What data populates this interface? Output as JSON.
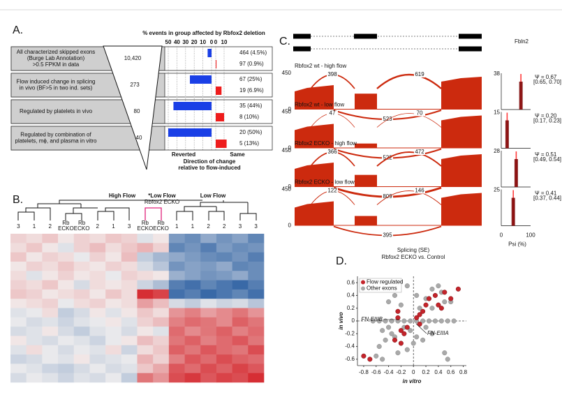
{
  "chart_data": [
    {
      "type": "bar",
      "panel": "A.",
      "title": "% events in group affected by Rbfox2 deletion",
      "categories": [
        [
          "All characterized skipped exons",
          "(Burge Lab Annotation)",
          ">0.5 FPKM in data"
        ],
        [
          "Flow induced change in splicing",
          "in vivo (BF>5 in two ind. sets)"
        ],
        [
          "Regulated by platelets in vivo"
        ],
        [
          "Regulated by combination of",
          "platelets, mϕ, and plasma in vitro"
        ]
      ],
      "event_counts": [
        {
          "value": 10420,
          "label": "10,420"
        },
        273,
        80,
        40
      ],
      "series": [
        {
          "name": "Reverted",
          "color": "#1a3fe6",
          "values": [
            4.5,
            25,
            44,
            50
          ],
          "value_labels": [
            "464 (4.5%)",
            "67 (25%)",
            "35 (44%)",
            "20 (50%)"
          ]
        },
        {
          "name": "Same",
          "color": "#ee1c1c",
          "axis": "x2",
          "values": [
            0.9,
            6.9,
            10,
            13
          ],
          "value_labels": [
            "97 (0.9%)",
            "19 (6.9%)",
            "8 (10%)",
            "5 (13%)"
          ]
        }
      ],
      "xlim": [
        50,
        0
      ],
      "xticks": [
        50,
        40,
        30,
        20,
        10,
        0
      ],
      "x2lim": [
        0,
        10
      ],
      "x2ticks": [
        0,
        10
      ],
      "xlabel": [
        "Direction of change",
        "relative to flow-induced"
      ],
      "grid": true
    },
    {
      "type": "heatmap",
      "panel": "B.",
      "groups": [
        {
          "label": "High Flow",
          "color": "#000000"
        },
        {
          "label": "*Low Flow",
          "sublabel": "Rbfox2 ECKO",
          "color": "#e0207a"
        },
        {
          "label": "Low Flow",
          "color": "#000000"
        }
      ],
      "columns": [
        "3",
        "1",
        "2",
        "Rb ECKO",
        "Rb ECKO",
        "2",
        "1",
        "3",
        "Rb ECKO",
        "Rb ECKO",
        "1",
        "1",
        "2",
        "2",
        "3",
        "3"
      ],
      "highlight": [
        3,
        4,
        8,
        9
      ],
      "highlight_color": "#e0207a",
      "colormap": [
        "#2f62a3",
        "#f3f0f0",
        "#d4242a"
      ],
      "zlim": [
        -2,
        2
      ],
      "values": [
        [
          0.3,
          0.2,
          0.4,
          0.1,
          0.3,
          0.2,
          0.4,
          0.3,
          -0.2,
          0.1,
          -1.2,
          -1.4,
          -1.0,
          -1.3,
          -1.1,
          -1.5
        ],
        [
          0.2,
          0.4,
          0.1,
          -0.2,
          0.3,
          0.5,
          0.2,
          0.4,
          0.6,
          0.3,
          -1.5,
          -1.3,
          -1.6,
          -1.2,
          -1.4,
          -1.3
        ],
        [
          0.4,
          0.1,
          0.3,
          0.2,
          -0.1,
          0.3,
          0.1,
          0.5,
          -0.5,
          -0.8,
          -1.0,
          -1.2,
          -1.4,
          -1.5,
          -1.3,
          -1.6
        ],
        [
          0.1,
          0.3,
          0.2,
          0.4,
          0.2,
          0.1,
          0.3,
          0.2,
          -0.3,
          -0.6,
          -1.3,
          -1.1,
          -1.2,
          -1.0,
          -1.5,
          -1.4
        ],
        [
          0.2,
          -0.2,
          0.1,
          0.3,
          0.1,
          0.2,
          -0.1,
          0.3,
          0.2,
          0.1,
          -0.9,
          -1.1,
          -1.3,
          -1.2,
          -1.0,
          -1.4
        ],
        [
          0.3,
          0.2,
          0.4,
          0.1,
          -0.3,
          0.2,
          0.1,
          0.2,
          -0.4,
          -0.7,
          -1.6,
          -1.8,
          -1.5,
          -1.7,
          -1.9,
          -1.6
        ],
        [
          0.4,
          0.3,
          0.1,
          0.2,
          0.3,
          0.1,
          0.4,
          0.2,
          1.9,
          1.7,
          -1.8,
          -1.6,
          -1.9,
          -1.7,
          -1.5,
          -1.8
        ],
        [
          0.1,
          0.2,
          0.3,
          -0.1,
          0.2,
          0.3,
          0.1,
          0.2,
          0.8,
          0.5,
          -0.3,
          -0.5,
          -0.2,
          -0.4,
          -0.3,
          -0.6
        ],
        [
          -0.2,
          -0.1,
          0.2,
          -0.5,
          -0.3,
          0.1,
          -0.2,
          0.1,
          0.4,
          0.2,
          0.9,
          1.1,
          0.8,
          1.0,
          1.2,
          0.9
        ],
        [
          -0.1,
          -0.3,
          -0.2,
          -0.4,
          -0.2,
          -0.1,
          0.1,
          -0.2,
          0.3,
          0.5,
          1.1,
          1.3,
          1.2,
          1.0,
          1.4,
          1.2
        ],
        [
          -0.3,
          -0.2,
          0.1,
          -0.3,
          -0.5,
          -0.2,
          -0.1,
          -0.3,
          0.1,
          -0.2,
          1.3,
          1.0,
          1.2,
          1.4,
          1.1,
          1.3
        ],
        [
          0.1,
          -0.2,
          -0.3,
          -0.1,
          -0.2,
          -0.4,
          -0.1,
          0.1,
          0.5,
          0.3,
          1.2,
          1.4,
          1.1,
          1.3,
          1.5,
          1.2
        ],
        [
          -0.2,
          0.2,
          -0.1,
          -0.3,
          -0.1,
          -0.2,
          0.2,
          -0.4,
          0.2,
          0.4,
          1.4,
          1.2,
          1.5,
          1.3,
          1.2,
          1.6
        ],
        [
          -0.4,
          -0.3,
          -0.1,
          -0.2,
          0.1,
          -0.3,
          -0.2,
          -0.1,
          0.6,
          0.3,
          1.1,
          1.5,
          1.3,
          1.6,
          1.4,
          1.3
        ],
        [
          -0.1,
          -0.2,
          -0.4,
          -0.5,
          -0.3,
          -0.1,
          -0.3,
          -0.2,
          0.4,
          0.7,
          1.5,
          1.3,
          1.6,
          1.4,
          1.7,
          1.5
        ],
        [
          -0.3,
          -0.1,
          -0.2,
          -0.4,
          -0.2,
          -0.3,
          -0.1,
          -0.5,
          1.2,
          0.9,
          1.6,
          1.8,
          1.5,
          1.7,
          1.6,
          1.9
        ]
      ]
    },
    {
      "type": "sashimi",
      "panel": "C.",
      "gene": "Fbln2",
      "color": "#cc2a0e",
      "ylim": [
        0,
        450
      ],
      "yticks": [
        0,
        450
      ],
      "hist_xticks": [
        0,
        100
      ],
      "hist_xlabel": "Psi (%)",
      "tracks": [
        {
          "name": "Rbfox2 wt - high flow",
          "junctions": [
            398,
            619,
            523
          ],
          "psi": 0.67,
          "psi_label": "Ψ = 0.67",
          "ci": "[0.65, 0.70]",
          "hist_ymax": 38
        },
        {
          "name": "Rbfox2 wt - low flow",
          "junctions": [
            47,
            70,
            522
          ],
          "psi": 0.2,
          "psi_label": "Ψ = 0.20",
          "ci": "[0.17, 0.23]",
          "hist_ymax": 15
        },
        {
          "name": "Rbfox2 ECKO - high flow",
          "junctions": [
            366,
            472,
            809
          ],
          "psi": 0.51,
          "psi_label": "Ψ = 0.51",
          "ci": "[0.49, 0.54]",
          "hist_ymax": 28
        },
        {
          "name": "Rbfox2 ECKO - low flow",
          "junctions": [
            122,
            146,
            395
          ],
          "psi": 0.41,
          "psi_label": "Ψ = 0.41",
          "ci": "[0.37, 0.44]",
          "hist_ymax": 25
        }
      ]
    },
    {
      "type": "scatter",
      "panel": "D.",
      "title": "Splicing (SE)",
      "subtitle": "Rbfox2 ECKO vs. Control",
      "xlabel": "in vitro",
      "ylabel": "in vivo",
      "legend": "upper left",
      "xlim": [
        -0.9,
        0.85
      ],
      "ylim": [
        -0.7,
        0.7
      ],
      "xticks": [
        -0.8,
        -0.6,
        -0.4,
        -0.2,
        0,
        0.2,
        0.4,
        0.6,
        0.8
      ],
      "yticks": [
        -0.6,
        -0.4,
        -0.2,
        0,
        0.2,
        0.4,
        0.6
      ],
      "annotations": [
        "FN-EIIIB",
        "FN-EIIIA"
      ],
      "series": [
        {
          "name": "Flow regulated",
          "color": "#c4242b",
          "x": [
            -0.8,
            -0.7,
            -0.25,
            -0.2,
            -0.15,
            -0.1,
            -0.3,
            -0.2,
            0.05,
            0.1,
            0.15,
            0.2,
            0.25,
            0.35,
            0.4,
            0.45,
            0.5,
            0.72,
            0.1,
            0.6,
            -0.25
          ],
          "y": [
            -0.55,
            -0.6,
            0.05,
            -0.15,
            -0.2,
            -0.1,
            -0.3,
            -0.35,
            0.05,
            0.1,
            0.15,
            0.25,
            0.35,
            0.4,
            0.25,
            0.2,
            0.45,
            0.5,
            -0.05,
            0.35,
            0.15
          ]
        },
        {
          "name": "Other exons",
          "color": "#a9a9a9",
          "x": [
            -0.3,
            -0.1,
            -0.4,
            -0.3,
            0.05,
            0.2,
            0.4,
            0.5,
            0.6,
            0.3,
            -0.5,
            -0.45,
            -0.4,
            -0.35,
            -0.3,
            -0.15,
            -0.05,
            0.05,
            0.15,
            0.2,
            0.3,
            -0.6,
            -0.55,
            -0.5,
            0.5,
            0.55,
            -0.1,
            0,
            -0.25,
            -0.65,
            -0.55,
            -0.45,
            -0.35,
            -0.25,
            -0.15,
            -0.05,
            0.05,
            0.15,
            0.25,
            0.35,
            0.45,
            0.55,
            0.65,
            0.1,
            -0.2,
            0.3,
            0.45
          ],
          "y": [
            0.6,
            0.55,
            0.3,
            0.4,
            0.4,
            0.35,
            0.55,
            0.3,
            0.3,
            0.2,
            -0.15,
            -0.3,
            -0.1,
            -0.2,
            -0.25,
            -0.1,
            -0.15,
            -0.25,
            -0.3,
            -0.1,
            -0.2,
            -0.55,
            -0.4,
            -0.6,
            -0.5,
            -0.6,
            -0.45,
            -0.35,
            -0.5,
            0,
            0,
            0,
            0,
            0,
            0,
            0,
            0,
            0,
            0,
            0,
            0,
            0,
            0,
            0.2,
            0.25,
            0.5,
            0.45
          ]
        }
      ]
    }
  ]
}
